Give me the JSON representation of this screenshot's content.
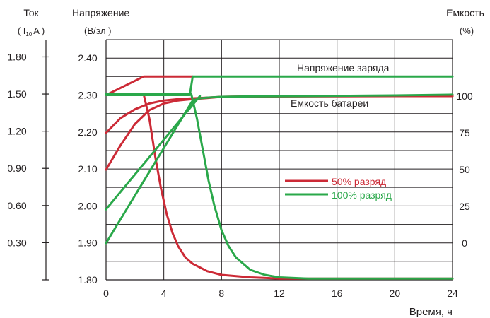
{
  "chart_data": {
    "type": "line",
    "xlabel": "Время, ч",
    "x_ticks": [
      "0",
      "4",
      "8",
      "12",
      "16",
      "20",
      "24"
    ],
    "xlim": [
      0,
      24
    ],
    "grid": true,
    "axes": {
      "current": {
        "title_line1": "Ток",
        "title_open": "( I",
        "title_sub": "10",
        "title_close": "A )",
        "ticks": [
          "1.80",
          "1.50",
          "1.20",
          "0.90",
          "0.60",
          "0.30"
        ],
        "tick_values": [
          1.8,
          1.5,
          1.2,
          0.9,
          0.6,
          0.3
        ]
      },
      "voltage": {
        "title_line1": "Напряжение",
        "title_line2": "(В/эл )",
        "ticks": [
          "2.40",
          "2.30",
          "2.20",
          "2.10",
          "2.00",
          "1.90",
          "1.80"
        ],
        "tick_values": [
          2.4,
          2.3,
          2.2,
          2.1,
          2.0,
          1.9,
          1.8
        ],
        "ylim": [
          1.8,
          2.45
        ]
      },
      "capacity": {
        "title_line1": "Емкость",
        "title_line2": "(%)",
        "ticks": [
          "100",
          "75",
          "50",
          "25",
          "0"
        ],
        "tick_values": [
          100,
          75,
          50,
          25,
          0
        ]
      }
    },
    "annotations": {
      "charge_voltage": "Напряжение заряда",
      "battery_capacity": "Емкость батареи"
    },
    "legend": {
      "placement": "center-right",
      "items": [
        {
          "label": "50%  разряд",
          "color": "#cc2a36"
        },
        {
          "label": "100%  разряд",
          "color": "#2aa84a"
        }
      ]
    },
    "series": [
      {
        "name": "50%  разряд",
        "color": "#cc2a36",
        "curves": [
          {
            "role": "charge_voltage",
            "x": [
              0,
              2.6,
              6
            ],
            "y": [
              2.3,
              2.35,
              2.35
            ]
          },
          {
            "role": "current",
            "x": [
              0,
              2.6,
              3.0,
              3.4,
              3.8,
              4.2,
              4.6,
              5.0,
              5.5,
              6.0,
              7.0,
              8.0,
              10,
              12,
              16,
              20,
              24
            ],
            "y": [
              1.5,
              1.5,
              1.3,
              1.0,
              0.74,
              0.53,
              0.38,
              0.27,
              0.18,
              0.13,
              0.07,
              0.04,
              0.02,
              0.01,
              0.01,
              0.01,
              0.01
            ]
          },
          {
            "role": "capacity",
            "x": [
              0,
              1,
              2,
              3,
              4,
              5,
              6,
              7,
              8,
              10,
              14,
              20,
              24
            ],
            "y": [
              75,
              85,
              91,
              95,
              97,
              98,
              98.5,
              99,
              99.5,
              99.7,
              99.8,
              100,
              100
            ]
          },
          {
            "role": "capacity_start_50",
            "x": [
              0,
              1,
              2,
              3,
              4,
              5,
              6,
              7,
              8,
              12,
              24
            ],
            "y": [
              50,
              66.5,
              81,
              90.5,
              95,
              97,
              98,
              98.7,
              99.5,
              100,
              100
            ]
          }
        ]
      },
      {
        "name": "100%  разряд",
        "color": "#2aa84a",
        "curves": [
          {
            "role": "charge_voltage",
            "x": [
              0,
              5.8,
              6,
              24
            ],
            "y": [
              2.3,
              2.3,
              2.35,
              2.35
            ]
          },
          {
            "role": "current",
            "x": [
              0,
              5.9,
              6.3,
              6.7,
              7.1,
              7.5,
              8.0,
              8.5,
              9.0,
              10,
              11,
              12,
              14,
              16,
              20,
              24
            ],
            "y": [
              1.5,
              1.5,
              1.3,
              1.05,
              0.8,
              0.6,
              0.4,
              0.27,
              0.18,
              0.08,
              0.04,
              0.02,
              0.01,
              0.01,
              0.01,
              0.01
            ]
          },
          {
            "role": "capacity",
            "x": [
              0,
              6,
              6.5,
              7,
              8,
              10,
              14,
              20,
              24
            ],
            "y": [
              0,
              97,
              98.5,
              99,
              99.5,
              99.8,
              100,
              100.5,
              101
            ]
          },
          {
            "role": "capacity_start_25",
            "x": [
              0,
              6.5
            ],
            "y": [
              23,
              100
            ]
          }
        ]
      }
    ]
  }
}
